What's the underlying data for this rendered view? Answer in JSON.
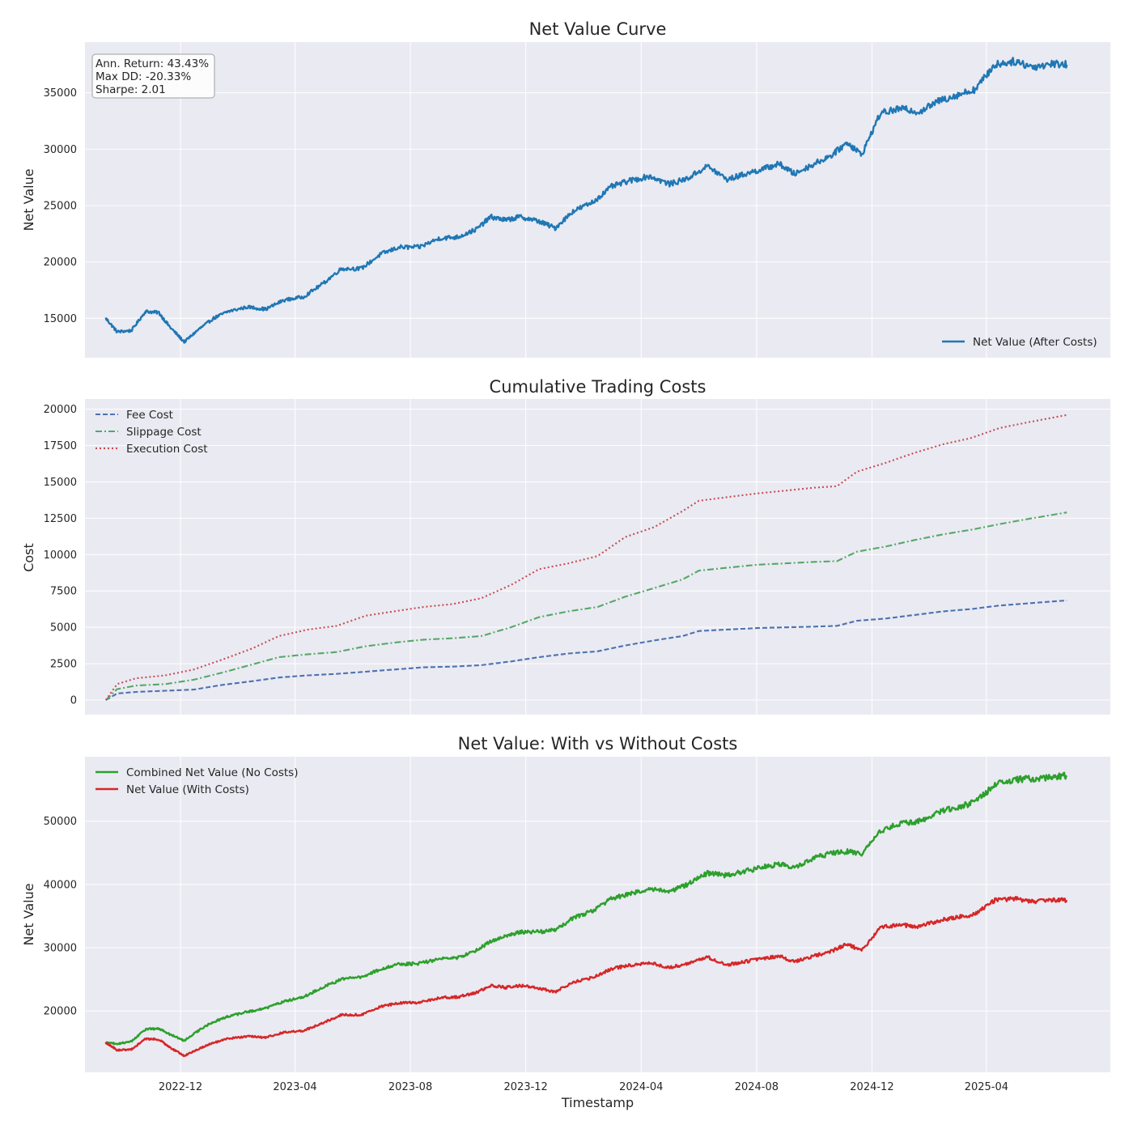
{
  "chart_data": [
    {
      "type": "line",
      "title": "Net Value Curve",
      "xlabel": "",
      "ylabel": "Net Value",
      "xlim": [
        "2022-08-22",
        "2025-08-10"
      ],
      "ylim": [
        11500,
        39500
      ],
      "yticks": [
        15000,
        20000,
        25000,
        30000,
        35000
      ],
      "grid": true,
      "legend_position": "lower-right",
      "stats_box": [
        "Ann. Return: 43.43%",
        "Max DD: -20.33%",
        "Sharpe: 2.01"
      ],
      "series": [
        {
          "name": "Net Value (After Costs)",
          "color": "#1f77b4",
          "style": "solid",
          "x": [
            "2022-09-13",
            "2022-09-25",
            "2022-10-10",
            "2022-10-25",
            "2022-11-08",
            "2022-11-20",
            "2022-12-05",
            "2022-12-20",
            "2023-01-05",
            "2023-01-20",
            "2023-02-10",
            "2023-03-01",
            "2023-03-20",
            "2023-04-10",
            "2023-05-01",
            "2023-05-20",
            "2023-06-10",
            "2023-07-01",
            "2023-07-20",
            "2023-08-10",
            "2023-09-01",
            "2023-09-20",
            "2023-10-10",
            "2023-10-25",
            "2023-11-10",
            "2023-11-25",
            "2023-12-15",
            "2024-01-01",
            "2024-01-20",
            "2024-02-10",
            "2024-03-01",
            "2024-03-20",
            "2024-04-10",
            "2024-05-01",
            "2024-05-20",
            "2024-06-10",
            "2024-07-01",
            "2024-07-20",
            "2024-08-10",
            "2024-08-25",
            "2024-09-10",
            "2024-10-01",
            "2024-10-20",
            "2024-11-05",
            "2024-11-20",
            "2024-12-10",
            "2025-01-01",
            "2025-01-20",
            "2025-02-10",
            "2025-03-01",
            "2025-03-20",
            "2025-04-10",
            "2025-05-01",
            "2025-05-20",
            "2025-06-10",
            "2025-06-25"
          ],
          "y": [
            15000,
            13800,
            13900,
            15600,
            15500,
            14200,
            12900,
            14000,
            15000,
            15600,
            16000,
            15800,
            16600,
            16900,
            18100,
            19400,
            19400,
            20700,
            21300,
            21300,
            22100,
            22200,
            22900,
            24000,
            23700,
            24000,
            23600,
            23000,
            24500,
            25300,
            26700,
            27200,
            27600,
            26900,
            27400,
            28500,
            27300,
            27800,
            28300,
            28700,
            27800,
            28700,
            29500,
            30600,
            29500,
            33200,
            33600,
            33300,
            34300,
            34800,
            35300,
            37500,
            37800,
            37300,
            37600,
            37500
          ]
        }
      ]
    },
    {
      "type": "line",
      "title": "Cumulative Trading Costs",
      "xlabel": "",
      "ylabel": "Cost",
      "xlim": [
        "2022-08-22",
        "2025-08-10"
      ],
      "ylim": [
        -1000,
        20700
      ],
      "yticks": [
        0,
        2500,
        5000,
        7500,
        10000,
        12500,
        15000,
        17500,
        20000
      ],
      "grid": true,
      "legend_position": "upper-left",
      "x": [
        "2022-09-13",
        "2022-09-25",
        "2022-10-15",
        "2022-11-15",
        "2022-12-15",
        "2023-01-15",
        "2023-02-15",
        "2023-03-15",
        "2023-04-15",
        "2023-05-15",
        "2023-06-15",
        "2023-07-15",
        "2023-08-15",
        "2023-09-15",
        "2023-10-15",
        "2023-11-15",
        "2023-12-15",
        "2024-01-15",
        "2024-02-15",
        "2024-03-15",
        "2024-04-15",
        "2024-05-15",
        "2024-06-01",
        "2024-07-01",
        "2024-08-01",
        "2024-09-01",
        "2024-10-01",
        "2024-10-25",
        "2024-11-15",
        "2024-12-15",
        "2025-01-15",
        "2025-02-15",
        "2025-03-15",
        "2025-04-15",
        "2025-05-15",
        "2025-06-25"
      ],
      "series": [
        {
          "name": "Fee Cost",
          "color": "#4c72b0",
          "style": "dashed",
          "values": [
            0,
            450,
            560,
            640,
            720,
            1050,
            1300,
            1550,
            1700,
            1800,
            1950,
            2100,
            2250,
            2300,
            2400,
            2650,
            2950,
            3200,
            3350,
            3750,
            4100,
            4400,
            4750,
            4850,
            4950,
            5000,
            5050,
            5100,
            5450,
            5600,
            5850,
            6100,
            6250,
            6500,
            6650,
            6850
          ]
        },
        {
          "name": "Slippage Cost",
          "color": "#55a868",
          "style": "dashdot",
          "values": [
            0,
            750,
            1000,
            1100,
            1400,
            1900,
            2450,
            2950,
            3150,
            3300,
            3700,
            3950,
            4150,
            4250,
            4400,
            5000,
            5700,
            6100,
            6400,
            7100,
            7700,
            8300,
            8900,
            9100,
            9300,
            9400,
            9500,
            9550,
            10200,
            10550,
            11000,
            11400,
            11700,
            12100,
            12450,
            12900
          ]
        },
        {
          "name": "Execution Cost",
          "color": "#c44e52",
          "style": "dotted",
          "values": [
            0,
            1100,
            1500,
            1700,
            2100,
            2800,
            3550,
            4400,
            4850,
            5100,
            5800,
            6100,
            6400,
            6600,
            7000,
            7900,
            9000,
            9400,
            9900,
            11200,
            11900,
            13000,
            13700,
            13950,
            14200,
            14400,
            14600,
            14700,
            15700,
            16300,
            17000,
            17600,
            18000,
            18700,
            19100,
            19600
          ]
        }
      ]
    },
    {
      "type": "line",
      "title": "Net Value: With vs Without Costs",
      "xlabel": "Timestamp",
      "ylabel": "Net Value",
      "xlim": [
        "2022-08-22",
        "2025-08-10"
      ],
      "ylim": [
        10300,
        60200
      ],
      "yticks": [
        20000,
        30000,
        40000,
        50000
      ],
      "xticks": [
        "2022-12",
        "2023-04",
        "2023-08",
        "2023-12",
        "2024-04",
        "2024-08",
        "2024-12",
        "2025-04"
      ],
      "grid": true,
      "legend_position": "upper-left",
      "x": [
        "2022-09-13",
        "2022-09-25",
        "2022-10-10",
        "2022-10-25",
        "2022-11-08",
        "2022-11-20",
        "2022-12-05",
        "2022-12-20",
        "2023-01-05",
        "2023-01-20",
        "2023-02-10",
        "2023-03-01",
        "2023-03-20",
        "2023-04-10",
        "2023-05-01",
        "2023-05-20",
        "2023-06-10",
        "2023-07-01",
        "2023-07-20",
        "2023-08-10",
        "2023-09-01",
        "2023-09-20",
        "2023-10-10",
        "2023-10-25",
        "2023-11-10",
        "2023-11-25",
        "2023-12-15",
        "2024-01-01",
        "2024-01-20",
        "2024-02-10",
        "2024-03-01",
        "2024-03-20",
        "2024-04-10",
        "2024-05-01",
        "2024-05-20",
        "2024-06-10",
        "2024-07-01",
        "2024-07-20",
        "2024-08-10",
        "2024-08-25",
        "2024-09-10",
        "2024-10-01",
        "2024-10-20",
        "2024-11-05",
        "2024-11-20",
        "2024-12-10",
        "2025-01-01",
        "2025-01-20",
        "2025-02-10",
        "2025-03-01",
        "2025-03-20",
        "2025-04-10",
        "2025-05-01",
        "2025-05-20",
        "2025-06-10",
        "2025-06-25"
      ],
      "series": [
        {
          "name": "Combined Net Value (No Costs)",
          "color": "#2ca02c",
          "style": "solid",
          "values": [
            15000,
            14800,
            15200,
            17100,
            17200,
            16300,
            15300,
            16900,
            18300,
            19100,
            19900,
            20400,
            21500,
            22200,
            23800,
            25000,
            25400,
            26600,
            27400,
            27500,
            28200,
            28400,
            29600,
            31000,
            31900,
            32500,
            32500,
            32800,
            34700,
            35800,
            37800,
            38500,
            39300,
            38900,
            40000,
            41800,
            41400,
            42100,
            42800,
            43200,
            42600,
            44200,
            45000,
            45200,
            44800,
            48500,
            49700,
            50000,
            51500,
            52200,
            53000,
            55800,
            56600,
            56700,
            57000,
            57200
          ]
        },
        {
          "name": "Net Value (With Costs)",
          "color": "#d62728",
          "style": "solid",
          "values": [
            15000,
            13800,
            13900,
            15600,
            15500,
            14200,
            12900,
            14000,
            15000,
            15600,
            16000,
            15800,
            16600,
            16900,
            18100,
            19400,
            19400,
            20700,
            21300,
            21300,
            22100,
            22200,
            22900,
            24000,
            23700,
            24000,
            23600,
            23000,
            24500,
            25300,
            26700,
            27200,
            27600,
            26900,
            27400,
            28500,
            27300,
            27800,
            28300,
            28700,
            27800,
            28700,
            29500,
            30600,
            29500,
            33200,
            33600,
            33300,
            34300,
            34800,
            35300,
            37500,
            37800,
            37300,
            37600,
            37500
          ]
        }
      ]
    }
  ]
}
